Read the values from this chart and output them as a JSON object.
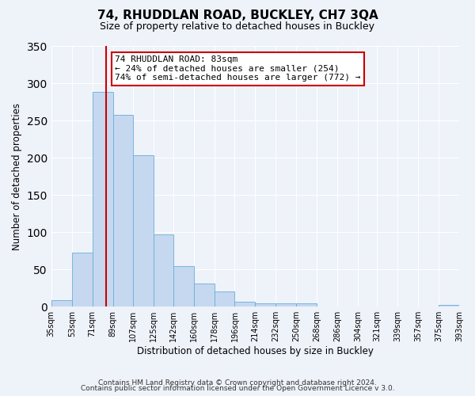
{
  "title": "74, RHUDDLAN ROAD, BUCKLEY, CH7 3QA",
  "subtitle": "Size of property relative to detached houses in Buckley",
  "xlabel": "Distribution of detached houses by size in Buckley",
  "ylabel": "Number of detached properties",
  "bar_color": "#c5d8f0",
  "bar_edge_color": "#6aaed6",
  "background_color": "#eef2f9",
  "grid_color": "#ffffff",
  "bin_edges": [
    35,
    53,
    71,
    89,
    107,
    125,
    142,
    160,
    178,
    196,
    214,
    232,
    250,
    268,
    286,
    304,
    321,
    339,
    357,
    375,
    393
  ],
  "bin_labels": [
    "35sqm",
    "53sqm",
    "71sqm",
    "89sqm",
    "107sqm",
    "125sqm",
    "142sqm",
    "160sqm",
    "178sqm",
    "196sqm",
    "214sqm",
    "232sqm",
    "250sqm",
    "268sqm",
    "286sqm",
    "304sqm",
    "321sqm",
    "339sqm",
    "357sqm",
    "375sqm",
    "393sqm"
  ],
  "bar_heights": [
    9,
    73,
    288,
    258,
    203,
    97,
    54,
    31,
    20,
    7,
    5,
    4,
    4,
    0,
    0,
    0,
    0,
    0,
    0,
    2
  ],
  "vline_x": 83,
  "vline_color": "#cc0000",
  "annotation_text": "74 RHUDDLAN ROAD: 83sqm\n← 24% of detached houses are smaller (254)\n74% of semi-detached houses are larger (772) →",
  "annotation_box_edge_color": "#cc0000",
  "ylim": [
    0,
    350
  ],
  "yticks": [
    0,
    50,
    100,
    150,
    200,
    250,
    300,
    350
  ],
  "footer1": "Contains HM Land Registry data © Crown copyright and database right 2024.",
  "footer2": "Contains public sector information licensed under the Open Government Licence v 3.0."
}
